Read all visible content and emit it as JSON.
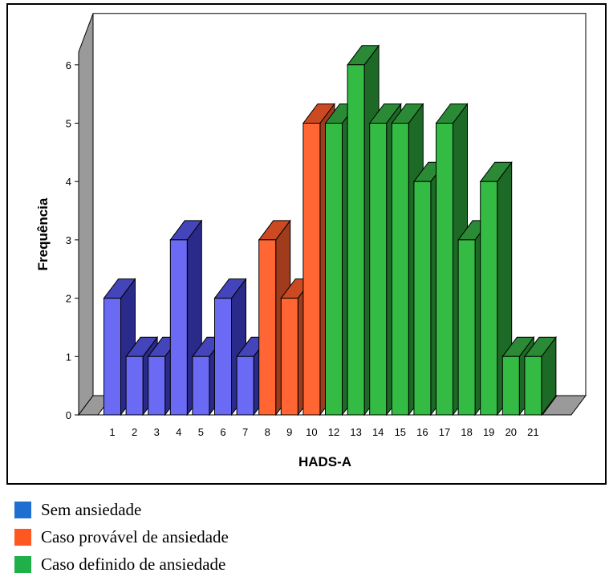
{
  "chart_data": {
    "type": "bar",
    "categories": [
      "1",
      "2",
      "3",
      "4",
      "5",
      "6",
      "7",
      "8",
      "9",
      "10",
      "12",
      "13",
      "14",
      "15",
      "16",
      "17",
      "18",
      "19",
      "20",
      "21"
    ],
    "values": [
      2,
      1,
      1,
      3,
      1,
      2,
      1,
      3,
      2,
      5,
      5,
      6,
      5,
      5,
      4,
      5,
      3,
      4,
      1,
      1
    ],
    "groups": [
      0,
      0,
      0,
      0,
      0,
      0,
      0,
      1,
      1,
      1,
      2,
      2,
      2,
      2,
      2,
      2,
      2,
      2,
      2,
      2
    ],
    "xlabel": "HADS-A",
    "ylabel": "Frequência",
    "yticks": [
      "0",
      "1",
      "2",
      "3",
      "4",
      "5",
      "6"
    ],
    "ylim": [
      0,
      6
    ],
    "grid": false,
    "colors": {
      "sem": {
        "front": "#6a6af5",
        "side": "#2a2a8a",
        "top": "#4444bb"
      },
      "provavel": {
        "front": "#ff6633",
        "side": "#a03c1c",
        "top": "#cc4a22"
      },
      "definido": {
        "front": "#33bb44",
        "side": "#1d6a27",
        "top": "#2a8a35"
      }
    }
  },
  "legend": [
    {
      "label": "Sem ansiedade",
      "color": "#1e6fd0"
    },
    {
      "label": "Caso provável de ansiedade",
      "color": "#ff5722"
    },
    {
      "label": "Caso definido de ansiedade",
      "color": "#1fb04a"
    }
  ]
}
